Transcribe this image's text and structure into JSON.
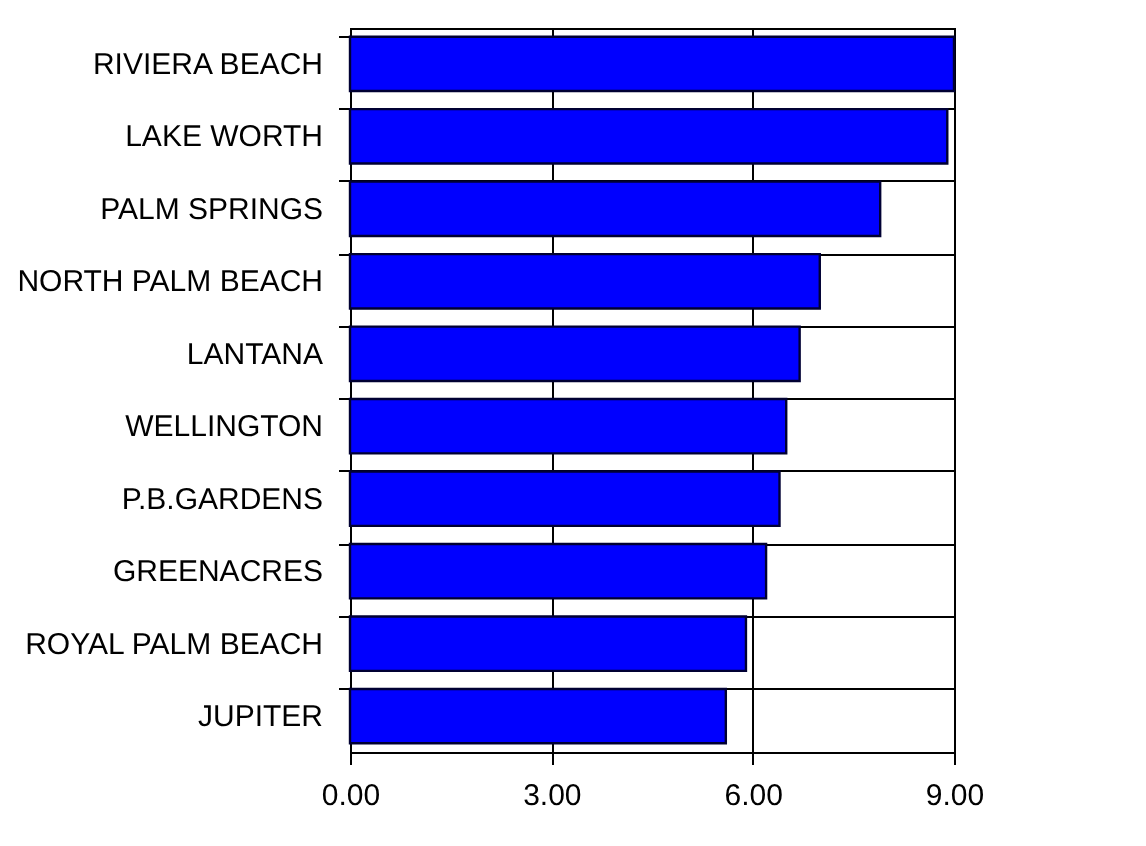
{
  "chart_data": {
    "type": "bar",
    "orientation": "horizontal",
    "categories": [
      "RIVIERA BEACH",
      "LAKE WORTH",
      "PALM SPRINGS",
      "NORTH PALM BEACH",
      "LANTANA",
      "WELLINGTON",
      "P.B.GARDENS",
      "GREENACRES",
      "ROYAL PALM BEACH",
      "JUPITER"
    ],
    "values": [
      9.0,
      8.9,
      7.9,
      7.0,
      6.7,
      6.5,
      6.4,
      6.2,
      5.9,
      5.6
    ],
    "color": "#0000ff",
    "xlim": [
      0,
      9
    ],
    "xticks": [
      {
        "value": 0,
        "label": "0.00"
      },
      {
        "value": 3,
        "label": "3.00"
      },
      {
        "value": 6,
        "label": "6.00"
      },
      {
        "value": 9,
        "label": "9.00"
      }
    ],
    "grid": true
  }
}
